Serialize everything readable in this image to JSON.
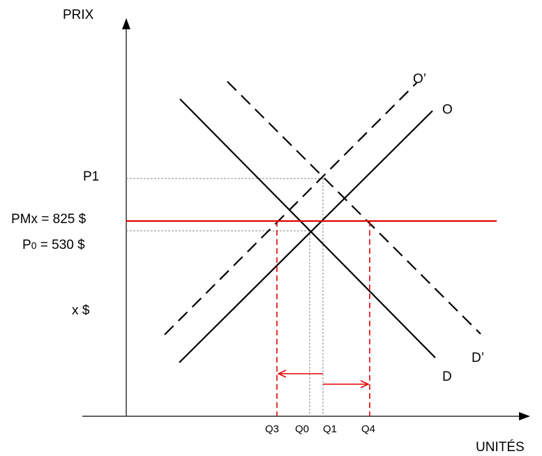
{
  "axes": {
    "y_label": "PRIX",
    "x_label": "UNITÉS"
  },
  "price_labels": {
    "p1": "P1",
    "pmx": "PMx = 825 $",
    "p0_prefix": "P",
    "p0_sub": "0",
    "p0_suffix": " = 530 $",
    "x": "x $"
  },
  "quantity_labels": {
    "q3": "Q3",
    "q0": "Q0",
    "q1": "Q1",
    "q4": "Q4"
  },
  "curve_labels": {
    "o_prime": "O’",
    "o": "O",
    "d_prime": "D’",
    "d": "D"
  },
  "colors": {
    "curves": "#000000",
    "world_price": "#e00000",
    "guides": "#888888"
  }
}
